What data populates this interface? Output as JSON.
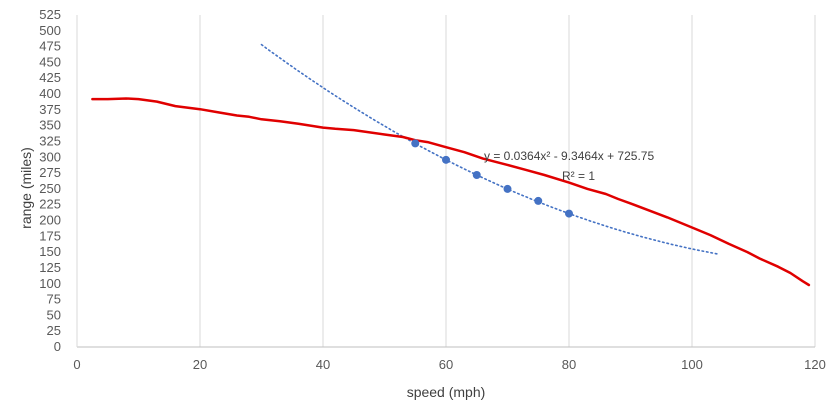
{
  "chart_data": {
    "type": "scatter",
    "title": "",
    "xlabel": "speed (mph)",
    "ylabel": "range (miles)",
    "xlim": [
      0,
      120
    ],
    "ylim": [
      0,
      525
    ],
    "x_ticks": [
      "0",
      "20",
      "40",
      "60",
      "80",
      "100",
      "120"
    ],
    "y_ticks": [
      "0",
      "25",
      "50",
      "75",
      "100",
      "125",
      "150",
      "175",
      "200",
      "225",
      "250",
      "275",
      "300",
      "325",
      "350",
      "375",
      "400",
      "425",
      "450",
      "475",
      "500",
      "525"
    ],
    "grid": "vertical",
    "legend": "none",
    "series": [
      {
        "type": "line",
        "color": "#e00000",
        "x": [
          2.5,
          5,
          8,
          10,
          13,
          16,
          20,
          23,
          26,
          28,
          30,
          33,
          36,
          40,
          42,
          45,
          50,
          53,
          55,
          57,
          60,
          63,
          66,
          70,
          73,
          76,
          80,
          83,
          86,
          88,
          90,
          93,
          96,
          100,
          103,
          106,
          109,
          111,
          114,
          116,
          118,
          119
        ],
        "y": [
          392,
          392,
          393,
          392,
          388,
          381,
          376,
          371,
          366,
          364,
          360,
          357,
          353,
          347,
          345,
          343,
          336,
          332,
          327,
          324,
          316,
          308,
          298,
          288,
          280,
          272,
          260,
          250,
          242,
          234,
          227,
          216,
          205,
          189,
          177,
          163,
          150,
          140,
          127,
          117,
          104,
          98
        ]
      },
      {
        "type": "scatter",
        "color": "#4472c4",
        "x": [
          55,
          60,
          65,
          70,
          75,
          80
        ],
        "y": [
          322,
          296,
          272,
          250,
          231,
          211
        ]
      },
      {
        "type": "trendline",
        "style": "dotted",
        "color": "#4472c4",
        "fit": "poly2",
        "coefficients": [
          0.0364,
          -9.3464,
          725.75
        ],
        "x_range": [
          30,
          104.5
        ]
      }
    ],
    "annotations": [
      "y = 0.0364x² - 9.3464x + 725.75",
      "R² = 1"
    ]
  }
}
